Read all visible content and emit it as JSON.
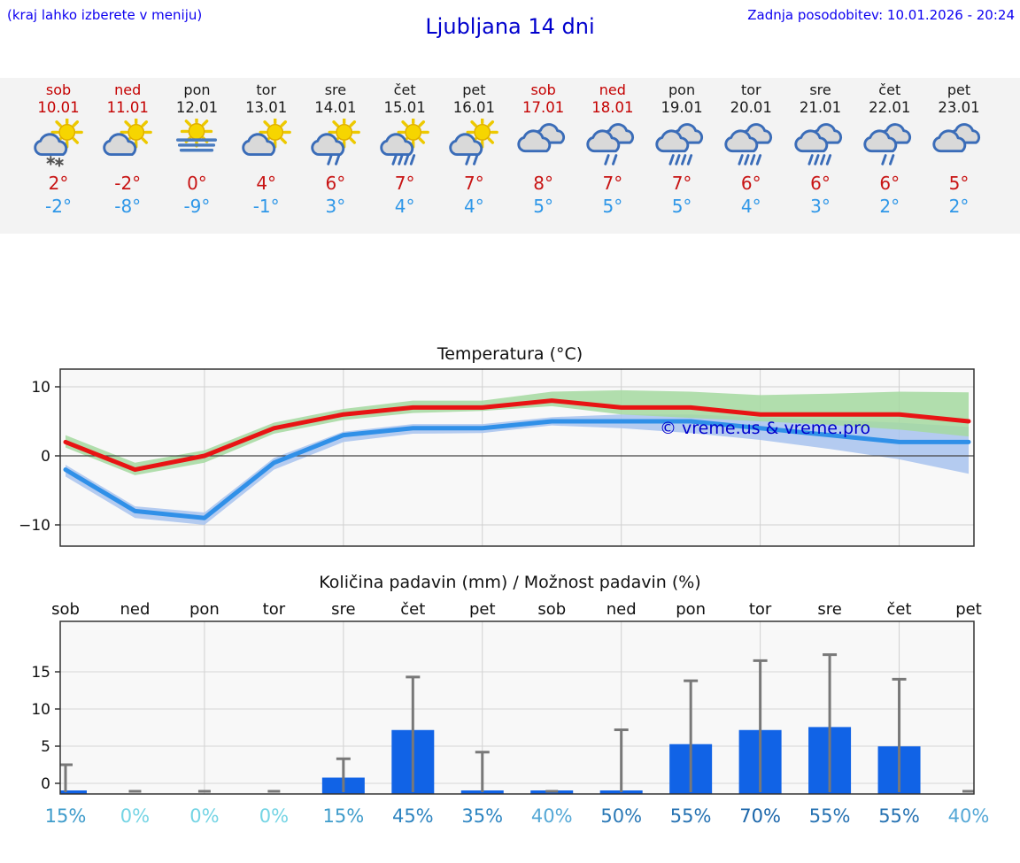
{
  "header": {
    "menu_hint": "(kraj lahko izberete v meniju)",
    "title": "Ljubljana 14 dni",
    "last_update": "Zadnja posodobitev: 10.01.2026 - 20:24"
  },
  "colors": {
    "weekend_red": "#c40000",
    "tmax_red": "#c81414",
    "tmin_blue": "#2f97e8",
    "header_blue": "#0d00f0",
    "title_blue": "#0000cd",
    "strip_bg": "#f3f3f3"
  },
  "forecast": {
    "days": [
      {
        "name": "sob",
        "date": "10.01",
        "weekend": true,
        "icon": "sun-cloud-snow",
        "tmax": "2°",
        "tmin": "-2°"
      },
      {
        "name": "ned",
        "date": "11.01",
        "weekend": true,
        "icon": "sun-cloud",
        "tmax": "-2°",
        "tmin": "-8°"
      },
      {
        "name": "pon",
        "date": "12.01",
        "weekend": false,
        "icon": "fog-sun",
        "tmax": "0°",
        "tmin": "-9°"
      },
      {
        "name": "tor",
        "date": "13.01",
        "weekend": false,
        "icon": "sun-cloud",
        "tmax": "4°",
        "tmin": "-1°"
      },
      {
        "name": "sre",
        "date": "14.01",
        "weekend": false,
        "icon": "sun-cloud-rain2",
        "tmax": "6°",
        "tmin": "3°"
      },
      {
        "name": "čet",
        "date": "15.01",
        "weekend": false,
        "icon": "sun-cloud-rain4",
        "tmax": "7°",
        "tmin": "4°"
      },
      {
        "name": "pet",
        "date": "16.01",
        "weekend": false,
        "icon": "sun-cloud-rain2",
        "tmax": "7°",
        "tmin": "4°"
      },
      {
        "name": "sob",
        "date": "17.01",
        "weekend": true,
        "icon": "cloudy",
        "tmax": "8°",
        "tmin": "5°"
      },
      {
        "name": "ned",
        "date": "18.01",
        "weekend": true,
        "icon": "cloudy-rain2",
        "tmax": "7°",
        "tmin": "5°"
      },
      {
        "name": "pon",
        "date": "19.01",
        "weekend": false,
        "icon": "cloudy-rain4",
        "tmax": "7°",
        "tmin": "5°"
      },
      {
        "name": "tor",
        "date": "20.01",
        "weekend": false,
        "icon": "cloudy-rain4",
        "tmax": "6°",
        "tmin": "4°"
      },
      {
        "name": "sre",
        "date": "21.01",
        "weekend": false,
        "icon": "cloudy-rain4",
        "tmax": "6°",
        "tmin": "3°"
      },
      {
        "name": "čet",
        "date": "22.01",
        "weekend": false,
        "icon": "cloudy-rain2",
        "tmax": "6°",
        "tmin": "2°"
      },
      {
        "name": "pet",
        "date": "23.01",
        "weekend": false,
        "icon": "cloudy",
        "tmax": "5°",
        "tmin": "2°"
      }
    ]
  },
  "chart_data": [
    {
      "type": "line",
      "title": "Temperatura (°C)",
      "x_labels": [
        "sob 10.01",
        "ned 11.01",
        "pon 12.01",
        "tor 13.01",
        "sre 14.01",
        "čet 15.01",
        "pet 16.01",
        "sob 17.01",
        "ned 18.01",
        "pon 19.01",
        "tor 20.01",
        "sre 21.01",
        "čet 22.01",
        "pet 23.01"
      ],
      "yticks": [
        10,
        0,
        -10
      ],
      "ylim": [
        -13.5,
        12.8
      ],
      "grid": true,
      "watermark": "© vreme.us & vreme.pro",
      "watermark_color": "#0000cc",
      "series": [
        {
          "name": "tmax",
          "color": "#e81414",
          "band_color": "#a5d9a0",
          "values": [
            2,
            -2,
            0,
            4,
            6,
            7,
            7,
            8,
            7,
            7,
            6,
            6,
            6,
            5
          ],
          "band_upper": [
            3,
            -1,
            0.8,
            4.8,
            6.8,
            8,
            8,
            9.3,
            9.5,
            9.3,
            8.8,
            9,
            9.3,
            9.2
          ],
          "band_lower": [
            1.2,
            -2.8,
            -1,
            3.2,
            5.2,
            6.2,
            6.5,
            7.2,
            6,
            5.5,
            5,
            4.5,
            3.8,
            2.8
          ]
        },
        {
          "name": "tmin",
          "color": "#3090e8",
          "band_color": "#a8c3ee",
          "values": [
            -2,
            -8,
            -9,
            -1,
            3,
            4,
            4,
            5,
            5,
            5,
            4,
            3,
            2,
            2
          ],
          "band_upper": [
            -1.3,
            -7.3,
            -8.2,
            -0.3,
            3.5,
            4.6,
            4.6,
            5.6,
            6,
            6,
            5.6,
            5.2,
            4.8,
            4.2
          ],
          "band_lower": [
            -3,
            -9,
            -10,
            -2,
            2,
            3.2,
            3.3,
            4.4,
            4,
            3.3,
            2.3,
            1,
            -0.5,
            -2.6
          ]
        }
      ]
    },
    {
      "type": "bar",
      "title": "Količina padavin (mm) / Možnost padavin (%)",
      "categories": [
        "sob",
        "ned",
        "pon",
        "tor",
        "sre",
        "čet",
        "pet",
        "sob",
        "ned",
        "pon",
        "tor",
        "sre",
        "čet",
        "pet"
      ],
      "values": [
        0.1,
        0,
        0,
        0,
        0.8,
        7.2,
        0.3,
        0.2,
        0.2,
        5.3,
        7.2,
        7.6,
        5.0,
        0
      ],
      "whisker_max": [
        2.5,
        0,
        0,
        0,
        3.3,
        14.3,
        4.2,
        0,
        7.2,
        13.8,
        16.5,
        17.3,
        14.0,
        0
      ],
      "yticks": [
        0,
        5,
        10,
        15
      ],
      "ylim": [
        -1.4,
        22
      ],
      "grid": true,
      "bar_color": "#1163e6",
      "whisker_color": "#787878",
      "probabilities": [
        {
          "label": "15%",
          "color": "#3f9ccb"
        },
        {
          "label": "0%",
          "color": "#74d4e4"
        },
        {
          "label": "0%",
          "color": "#74d4e4"
        },
        {
          "label": "0%",
          "color": "#74d4e4"
        },
        {
          "label": "15%",
          "color": "#3f9ccb"
        },
        {
          "label": "45%",
          "color": "#2e84c0"
        },
        {
          "label": "35%",
          "color": "#2f86c2"
        },
        {
          "label": "40%",
          "color": "#55a8d6"
        },
        {
          "label": "50%",
          "color": "#2b79b6"
        },
        {
          "label": "55%",
          "color": "#2672b2"
        },
        {
          "label": "70%",
          "color": "#1b66aa"
        },
        {
          "label": "55%",
          "color": "#2672b2"
        },
        {
          "label": "55%",
          "color": "#2672b2"
        },
        {
          "label": "40%",
          "color": "#55a8d6"
        }
      ]
    }
  ]
}
